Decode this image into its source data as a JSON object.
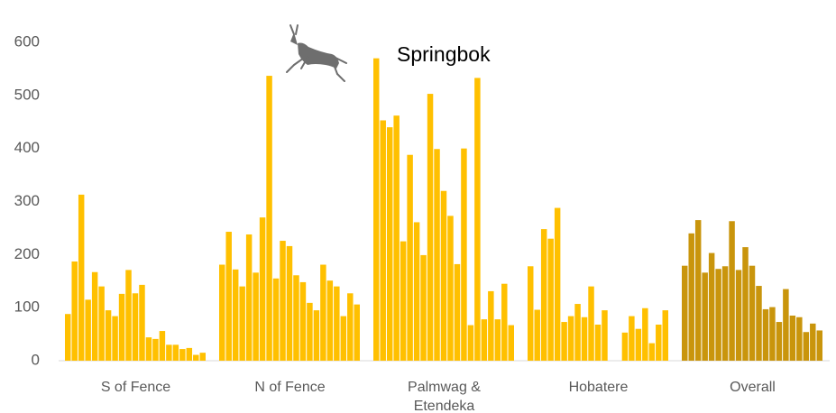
{
  "chart_data": {
    "type": "bar",
    "title": "Springbok",
    "ylim": [
      0,
      600
    ],
    "yticks": [
      0,
      100,
      200,
      300,
      400,
      500,
      600
    ],
    "grid": false,
    "series": [
      {
        "name": "S of Fence",
        "color": "#ffc000",
        "values": [
          88,
          187,
          313,
          115,
          167,
          140,
          95,
          84,
          126,
          171,
          127,
          143,
          44,
          41,
          56,
          30,
          30,
          22,
          24,
          11,
          15
        ]
      },
      {
        "name": "N of Fence",
        "color": "#ffc000",
        "values": [
          181,
          243,
          172,
          140,
          238,
          166,
          270,
          537,
          155,
          226,
          216,
          161,
          148,
          109,
          95,
          181,
          151,
          140,
          84,
          127,
          106
        ]
      },
      {
        "name": "Palmwag & Etendeka",
        "color": "#ffc000",
        "values": [
          570,
          453,
          440,
          462,
          225,
          388,
          261,
          199,
          503,
          399,
          320,
          273,
          182,
          400,
          67,
          533,
          78,
          131,
          78,
          145,
          67
        ]
      },
      {
        "name": "Hobatere",
        "color": "#ffc000",
        "values": [
          178,
          96,
          248,
          230,
          288,
          73,
          84,
          107,
          82,
          140,
          68,
          95,
          null,
          null,
          53,
          84,
          60,
          99,
          33,
          68,
          95
        ]
      },
      {
        "name": "Overall",
        "color": "#c9950c",
        "values": [
          179,
          240,
          265,
          166,
          203,
          173,
          178,
          263,
          171,
          214,
          179,
          141,
          97,
          101,
          73,
          135,
          85,
          82,
          54,
          70,
          57
        ]
      }
    ]
  }
}
